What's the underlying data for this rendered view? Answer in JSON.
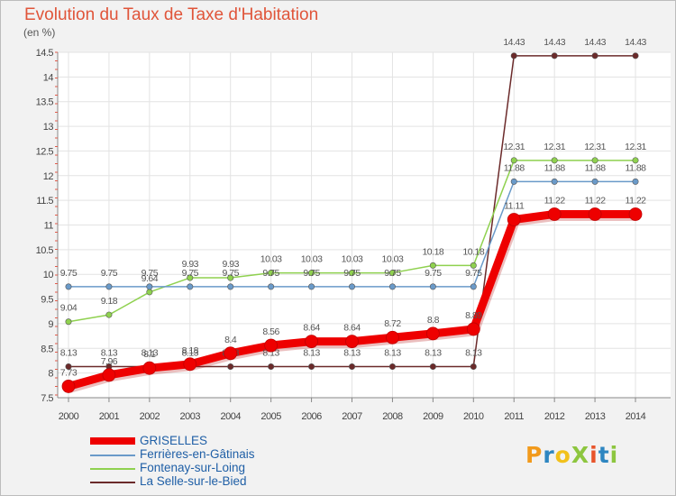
{
  "title": "Evolution du Taux de Taxe d'Habitation",
  "unit": "(en %)",
  "logo_text": "ProXiti",
  "chart_data": {
    "type": "line",
    "title": "Evolution du Taux de Taxe d'Habitation",
    "ylabel": "(en %)",
    "ylim": [
      7.5,
      14.5
    ],
    "yticks": [
      "7.5",
      "8",
      "8.5",
      "9",
      "9.5",
      "10",
      "10.5",
      "11",
      "11.5",
      "12",
      "12.5",
      "13",
      "13.5",
      "14",
      "14.5"
    ],
    "x": [
      "2000",
      "2001",
      "2002",
      "2003",
      "2004",
      "2005",
      "2006",
      "2007",
      "2008",
      "2009",
      "2010",
      "2011",
      "2012",
      "2013",
      "2014"
    ],
    "grid": true,
    "legend_position": "bottom-left",
    "series": [
      {
        "name": "La Selle-sur-le-Bied",
        "color": "#6b2a2a",
        "values": [
          8.13,
          8.13,
          8.13,
          8.13,
          8.13,
          8.13,
          8.13,
          8.13,
          8.13,
          8.13,
          8.13,
          14.43,
          14.43,
          14.43,
          14.43
        ],
        "labels": [
          "8.13",
          "8.13",
          "8.13",
          "8.13",
          "8.13",
          "8.13",
          "8.13",
          "8.13",
          "8.13",
          "8.13",
          "8.13",
          "14.43",
          "14.43",
          "14.43",
          "14.43"
        ]
      },
      {
        "name": "Fontenay-sur-Loing",
        "color": "#8fd14f",
        "values": [
          9.04,
          9.18,
          9.64,
          9.93,
          9.93,
          10.03,
          10.03,
          10.03,
          10.03,
          10.18,
          10.18,
          12.31,
          12.31,
          12.31,
          12.31
        ],
        "labels": [
          "9.04",
          "9.18",
          "9.64",
          "9.93",
          "9.93",
          "10.03",
          "10.03",
          "10.03",
          "10.03",
          "10.18",
          "10.18",
          "12.31",
          "12.31",
          "12.31",
          "12.31"
        ]
      },
      {
        "name": "Ferrières-en-Gâtinais",
        "color": "#6a9ac9",
        "values": [
          9.75,
          9.75,
          9.75,
          9.75,
          9.75,
          9.75,
          9.75,
          9.75,
          9.75,
          9.75,
          9.75,
          11.88,
          11.88,
          11.88,
          11.88
        ],
        "labels": [
          "9.75",
          "9.75",
          "9.75",
          "9.75",
          "9.75",
          "9.75",
          "9.75",
          "9.75",
          "9.75",
          "9.75",
          "9.75",
          "11.88",
          "11.88",
          "11.88",
          "11.88"
        ]
      },
      {
        "name": "GRISELLES",
        "color": "#ee0000",
        "values": [
          7.73,
          7.96,
          8.1,
          8.18,
          8.4,
          8.56,
          8.64,
          8.64,
          8.72,
          8.8,
          8.89,
          11.11,
          11.22,
          11.22,
          11.22
        ],
        "labels": [
          "7.73",
          "7.96",
          "8.1",
          "8.18",
          "8.4",
          "8.56",
          "8.64",
          "8.64",
          "8.72",
          "8.8",
          "8.89",
          "11.11",
          "11.22",
          "11.22",
          "11.22"
        ]
      }
    ]
  },
  "legend": [
    {
      "label": "GRISELLES",
      "color": "#ee0000"
    },
    {
      "label": "Ferrières-en-Gâtinais",
      "color": "#6a9ac9"
    },
    {
      "label": "Fontenay-sur-Loing",
      "color": "#8fd14f"
    },
    {
      "label": "La Selle-sur-le-Bied",
      "color": "#6b2a2a"
    }
  ]
}
